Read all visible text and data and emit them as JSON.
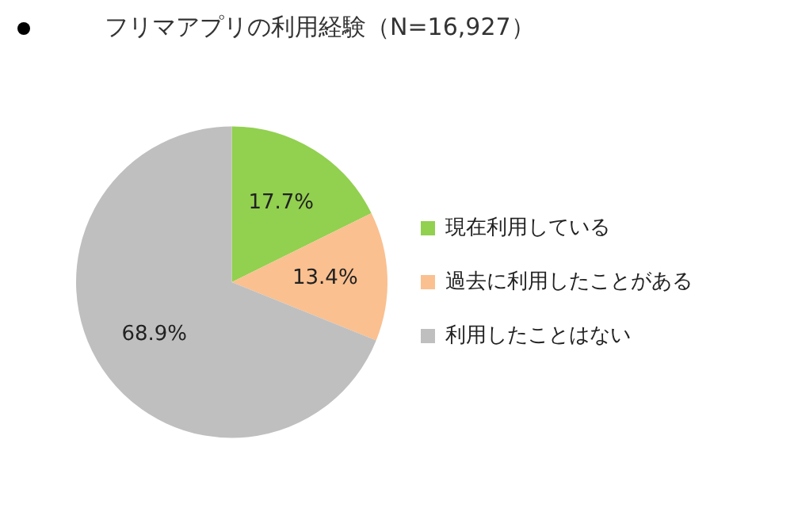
{
  "chart_data": {
    "type": "pie",
    "title": "フリマアプリの利用経験（N=16,927）",
    "categories": [
      "現在利用している",
      "過去に利用したことがある",
      "利用したことはない"
    ],
    "values": [
      17.7,
      13.4,
      68.9
    ],
    "colors": [
      "#92d050",
      "#fac090",
      "#bfbfbf"
    ],
    "value_labels": [
      "17.7%",
      "13.4%",
      "68.9%"
    ],
    "legend": "right"
  }
}
